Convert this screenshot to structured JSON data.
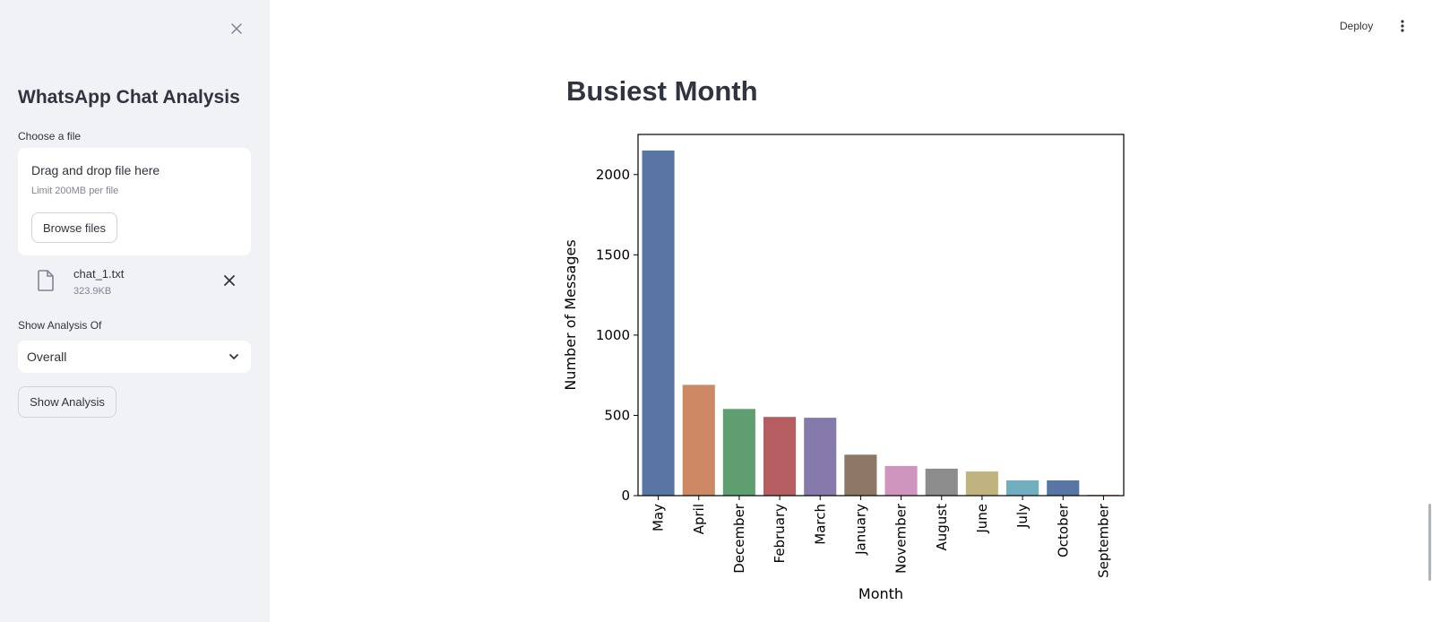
{
  "sidebar": {
    "title": "WhatsApp Chat Analysis",
    "uploader": {
      "label": "Choose a file",
      "drop_text": "Drag and drop file here",
      "limit_text": "Limit 200MB per file",
      "browse_label": "Browse files",
      "file": {
        "name": "chat_1.txt",
        "size": "323.9KB"
      }
    },
    "analysis": {
      "label": "Show Analysis Of",
      "selected": "Overall",
      "button_label": "Show Analysis"
    }
  },
  "toolbar": {
    "deploy_label": "Deploy"
  },
  "main": {
    "heading": "Busiest Month"
  },
  "colors": {
    "sidebar_bg": "#f0f2f6",
    "text": "#31333f",
    "bars": [
      "#5975a4",
      "#cc8963",
      "#5f9e6e",
      "#b55d60",
      "#857aab",
      "#8d7866",
      "#d095bf",
      "#8c8c8c",
      "#c1b37f",
      "#71aec0",
      "#5975a4",
      "#cc8963"
    ]
  },
  "chart_data": {
    "type": "bar",
    "categories": [
      "May",
      "April",
      "December",
      "February",
      "March",
      "January",
      "November",
      "August",
      "June",
      "July",
      "October",
      "September"
    ],
    "values": [
      2150,
      690,
      540,
      490,
      485,
      255,
      185,
      168,
      150,
      95,
      95,
      5
    ],
    "title": "",
    "xlabel": "Month",
    "ylabel": "Number of Messages",
    "ylim": [
      0,
      2250
    ],
    "yticks": [
      0,
      500,
      1000,
      1500,
      2000
    ],
    "grid": false,
    "legend": "none"
  }
}
